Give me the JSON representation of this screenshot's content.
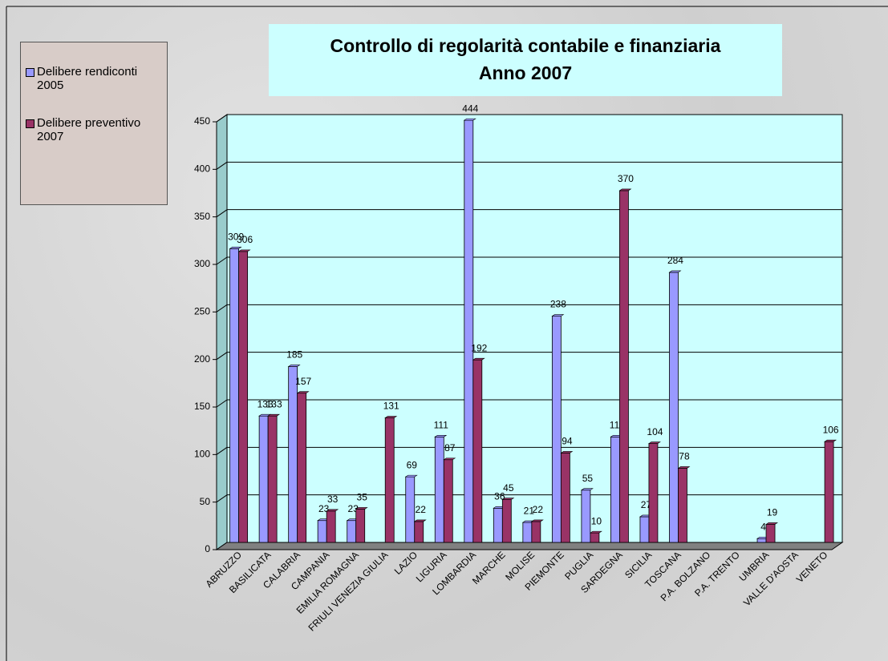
{
  "chart_data": {
    "type": "bar",
    "title": "Controllo di regolarità contabile e finanziaria",
    "subtitle": "Anno 2007",
    "categories": [
      "ABRUZZO",
      "BASILICATA",
      "CALABRIA",
      "CAMPANIA",
      "EMILIA ROMAGNA",
      "FRIULI VENEZIA GIULIA",
      "LAZIO",
      "LIGURIA",
      "LOMBARDIA",
      "MARCHE",
      "MOLISE",
      "PIEMONTE",
      "PUGLIA",
      "SARDEGNA",
      "SICILIA",
      "TOSCANA",
      "P.A. BOLZANO",
      "P.A. TRENTO",
      "UMBRIA",
      "VALLE D'AOSTA",
      "VENETO"
    ],
    "series": [
      {
        "name": "Delibere rendiconti 2005",
        "color": "#9999ff",
        "values": [
          309,
          133,
          185,
          23,
          23,
          null,
          69,
          111,
          444,
          36,
          21,
          238,
          55,
          111,
          27,
          284,
          null,
          null,
          4,
          null,
          null
        ]
      },
      {
        "name": "Delibere preventivo 2007",
        "color": "#993366",
        "values": [
          306,
          133,
          157,
          33,
          35,
          131,
          22,
          87,
          192,
          45,
          22,
          94,
          10,
          370,
          104,
          78,
          null,
          null,
          19,
          null,
          106
        ]
      }
    ],
    "ylim": [
      0,
      450
    ],
    "yticks": [
      0,
      50,
      100,
      150,
      200,
      250,
      300,
      350,
      400,
      450
    ],
    "grid": true,
    "legend": "left"
  }
}
